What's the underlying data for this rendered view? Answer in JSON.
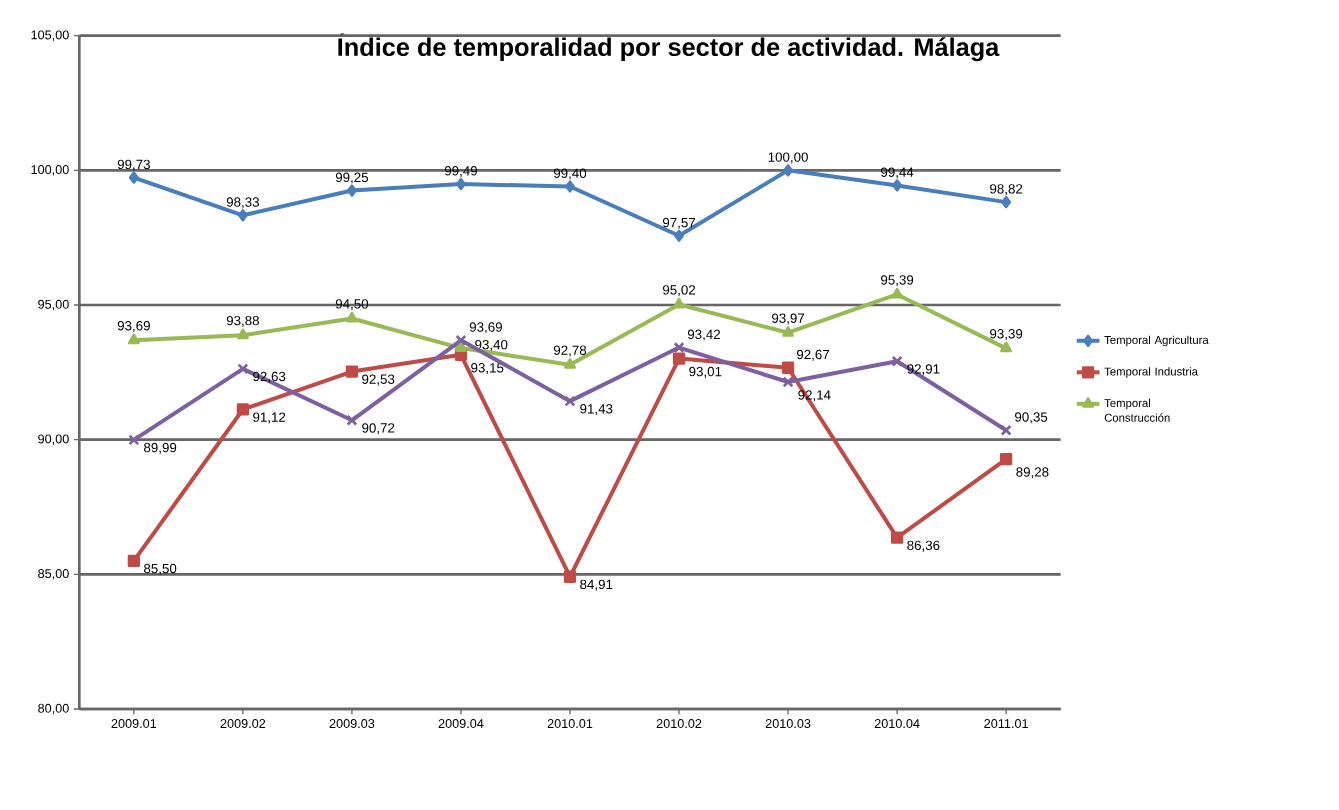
{
  "chart_data": {
    "type": "line",
    "title": "Índice de temporalidad por sector de actividad. Málaga",
    "categories": [
      "2009.01",
      "2009.02",
      "2009.03",
      "2009.04",
      "2010.01",
      "2010.02",
      "2010.03",
      "2010.04",
      "2011.01"
    ],
    "series": [
      {
        "name": "Temporal Agricultura",
        "color": "#4a7ebb",
        "marker": "diamond",
        "values": [
          99.73,
          98.33,
          99.25,
          99.49,
          99.4,
          97.57,
          100.0,
          99.44,
          98.82
        ],
        "value_labels": [
          "99,73",
          "98,33",
          "99,25",
          "99,49",
          "99,40",
          "97,57",
          "100,00",
          "99,44",
          "98,82"
        ]
      },
      {
        "name": "Temporal Industria",
        "color": "#be4b48",
        "marker": "square",
        "values": [
          85.5,
          91.12,
          92.53,
          93.15,
          84.91,
          93.01,
          92.67,
          86.36,
          89.28
        ],
        "value_labels": [
          "85,50",
          "91,12",
          "92,53",
          "93,15",
          "84,91",
          "93,01",
          "92,67",
          "86,36",
          "89,28"
        ]
      },
      {
        "name": "Temporal Construcción",
        "color": "#98b954",
        "marker": "triangle",
        "values": [
          93.69,
          93.88,
          94.5,
          93.4,
          92.78,
          95.02,
          93.97,
          95.39,
          93.39
        ],
        "value_labels": [
          "93,69",
          "93,88",
          "94,50",
          "93,40",
          "92,78",
          "95,02",
          "93,97",
          "95,39",
          "93,39"
        ]
      },
      {
        "color": "#7d60a0",
        "marker": "cross",
        "values": [
          89.99,
          92.63,
          90.72,
          93.69,
          91.43,
          93.42,
          92.14,
          92.91,
          90.35
        ],
        "value_labels": [
          "89,99",
          "92,63",
          "90,72",
          "93,69",
          "91,43",
          "93,42",
          "92,14",
          "92,91",
          "90,35"
        ]
      }
    ],
    "ylim": [
      80,
      105
    ],
    "yticks": [
      {
        "value": 80,
        "label": "80,00"
      },
      {
        "value": 85,
        "label": "85,00"
      },
      {
        "value": 90,
        "label": "90,00"
      },
      {
        "value": 95,
        "label": "95,00"
      },
      {
        "value": 100,
        "label": "100,00"
      },
      {
        "value": 105,
        "label": "105,00"
      }
    ],
    "grid": "y",
    "legend": "right"
  }
}
